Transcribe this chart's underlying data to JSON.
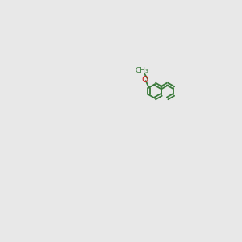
{
  "background_color": "#e8e8e8",
  "bond_color": "#3a7a3a",
  "n_color": "#2020cc",
  "o_color": "#cc2020",
  "cl_color": "#3a9a3a",
  "line_width": 1.2,
  "font_size": 7.5
}
